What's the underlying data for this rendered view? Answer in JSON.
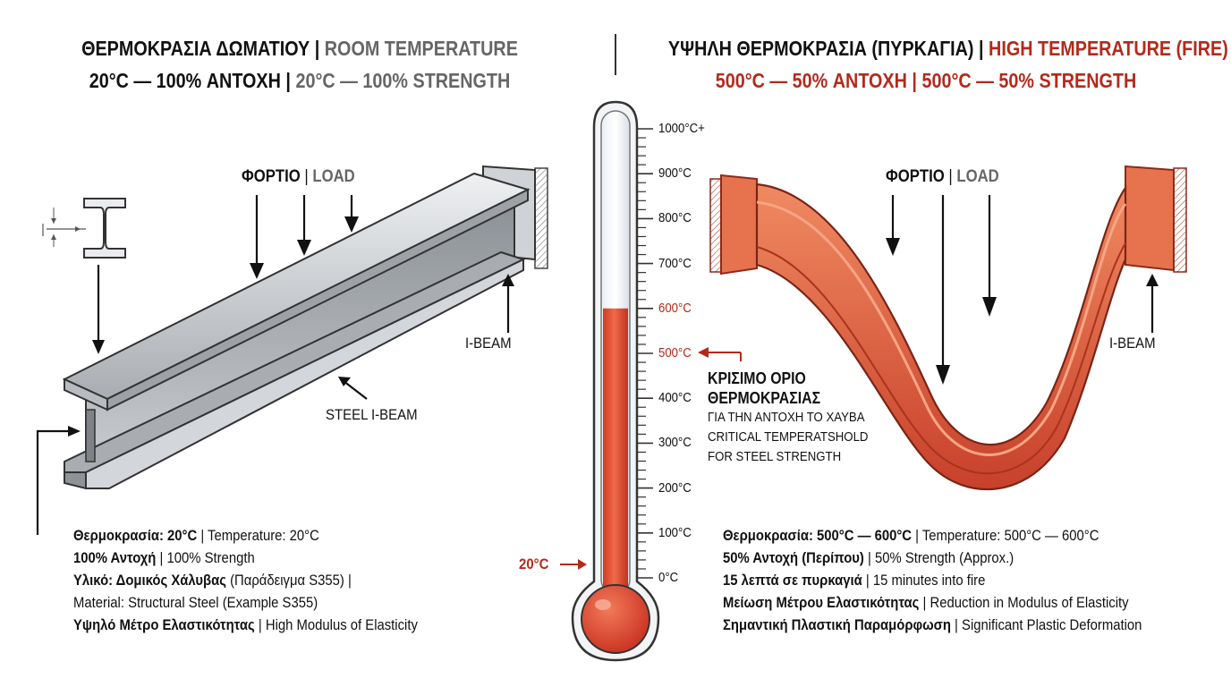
{
  "left_panel": {
    "title_greek": "ΘΕΡΜΟΚΡΑΣΙΑ ΔΩΜΑΤΙΟΥ",
    "title_english": "ROOM TEMPERATURE",
    "subtitle_greek": "20°C — 100% ΑΝΤΟΧΗ",
    "subtitle_english": "20°C — 100% STRENGTH",
    "load_greek": "ΦΟΡΤΙΟ",
    "load_english": "LOAD",
    "ibeam_label": "I-BEAM",
    "steel_ibeam_label": "STEEL I-BEAM",
    "specs": [
      {
        "bold": "Θερμοκρασία: 20°C",
        "sep": " | ",
        "text": "Temperature: 20°C"
      },
      {
        "bold": "100% Αντοχή",
        "sep": " | ",
        "text": "100% Strength"
      },
      {
        "bold": "Υλικό: Δομικός Χάλυβας",
        "sep": " ",
        "text": "(Παράδειγμα S355) |"
      },
      {
        "bold": "",
        "sep": "",
        "text": "Material: Structural Steel (Example S355)"
      },
      {
        "bold": "Υψηλό Μέτρο Ελαστικότητας",
        "sep": " | ",
        "text": "High Modulus of Elasticity"
      }
    ]
  },
  "right_panel": {
    "title_greek": "ΥΨΗΛΗ ΘΕΡΜΟΚΡΑΣΙΑ (ΠΥΡΚΑΓΙΑ)",
    "title_english": "HIGH TEMPERATURE (FIRE)",
    "subtitle_greek": "500°C — 50% ΑΝΤΟΧΗ",
    "subtitle_english": "500°C — 50% STRENGTH",
    "load_greek": "ΦΟΡΤΙΟ",
    "load_english": "LOAD",
    "ibeam_label": "I-BEAM",
    "specs": [
      {
        "bold": "Θερμοκρασία: 500°C — 600°C",
        "sep": " | ",
        "text": "Temperature: 500°C — 600°C"
      },
      {
        "bold": "50% Αντοχή (Περίπου)",
        "sep": " | ",
        "text": "50% Strength (Approx.)"
      },
      {
        "bold": "15 λεπτά σε πυρκαγιά",
        "sep": " | ",
        "text": "15 minutes into fire"
      },
      {
        "bold": "Μείωση Μέτρου Ελαστικότητας",
        "sep": " | ",
        "text": "Reduction in Modulus of Elasticity"
      },
      {
        "bold": "Σημαντική Πλαστική Παραμόρφωση",
        "sep": " | ",
        "text": "Significant Plastic Deformation"
      }
    ]
  },
  "thermometer": {
    "ticks": [
      "1000°C+",
      "900°C",
      "800°C",
      "700°C",
      "600°C",
      "500°C",
      "400°C",
      "300°C",
      "200°C",
      "100°C",
      "0°C"
    ],
    "red_ticks": [
      "600°C",
      "500°C"
    ],
    "fill_level_c": 600,
    "max_c": 1000,
    "current_marker": "20°C",
    "critical_greek_line1": "ΚΡΙΣΙΜΟ ΟΡΙΟ",
    "critical_greek_line2": "ΘΕΡΜΟΚΡΑΣΙΑΣ",
    "critical_greek_line3": "ΓΙΑ ΤΗΝ ΑΝΤΟΧΗ ΤΟ ΧΑΥΒΑ",
    "critical_english_line1": "CRITICAL TEMPERATSHOLD",
    "critical_english_line2": "FOR STEEL STRENGTH"
  },
  "colors": {
    "accent_red": "#b32a1c",
    "mercury": "#e14a2e",
    "steel": "#b9bcc0",
    "hot_steel": "#e0603f"
  }
}
